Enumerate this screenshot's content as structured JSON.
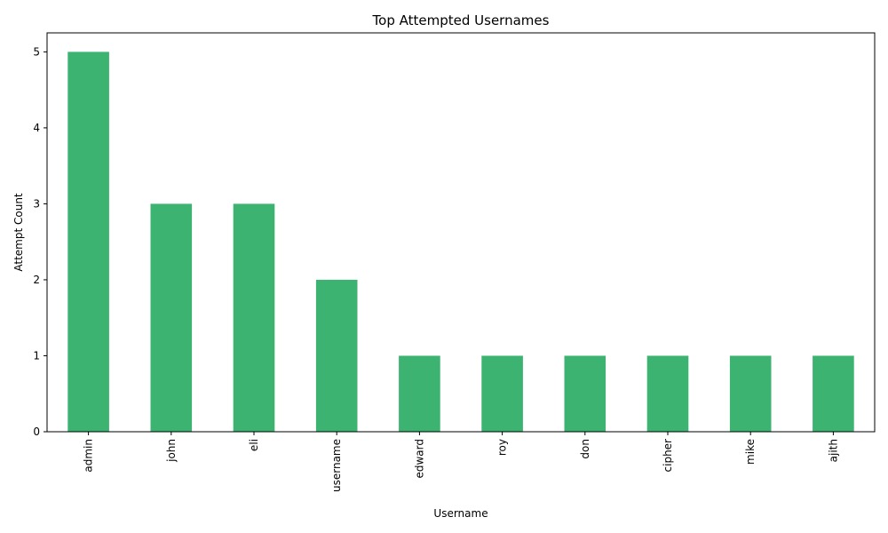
{
  "chart_data": {
    "type": "bar",
    "title": "Top Attempted Usernames",
    "xlabel": "Username",
    "ylabel": "Attempt Count",
    "categories": [
      "admin",
      "john",
      "eli",
      "username",
      "edward",
      "roy",
      "don",
      "cipher",
      "mike",
      "ajith"
    ],
    "values": [
      5,
      3,
      3,
      2,
      1,
      1,
      1,
      1,
      1,
      1
    ],
    "ylim": [
      0,
      5.25
    ],
    "yticks": [
      0,
      1,
      2,
      3,
      4,
      5
    ],
    "bar_color": "#3cb371",
    "grid": false,
    "legend": false,
    "x_tick_rotation": "vertical"
  }
}
